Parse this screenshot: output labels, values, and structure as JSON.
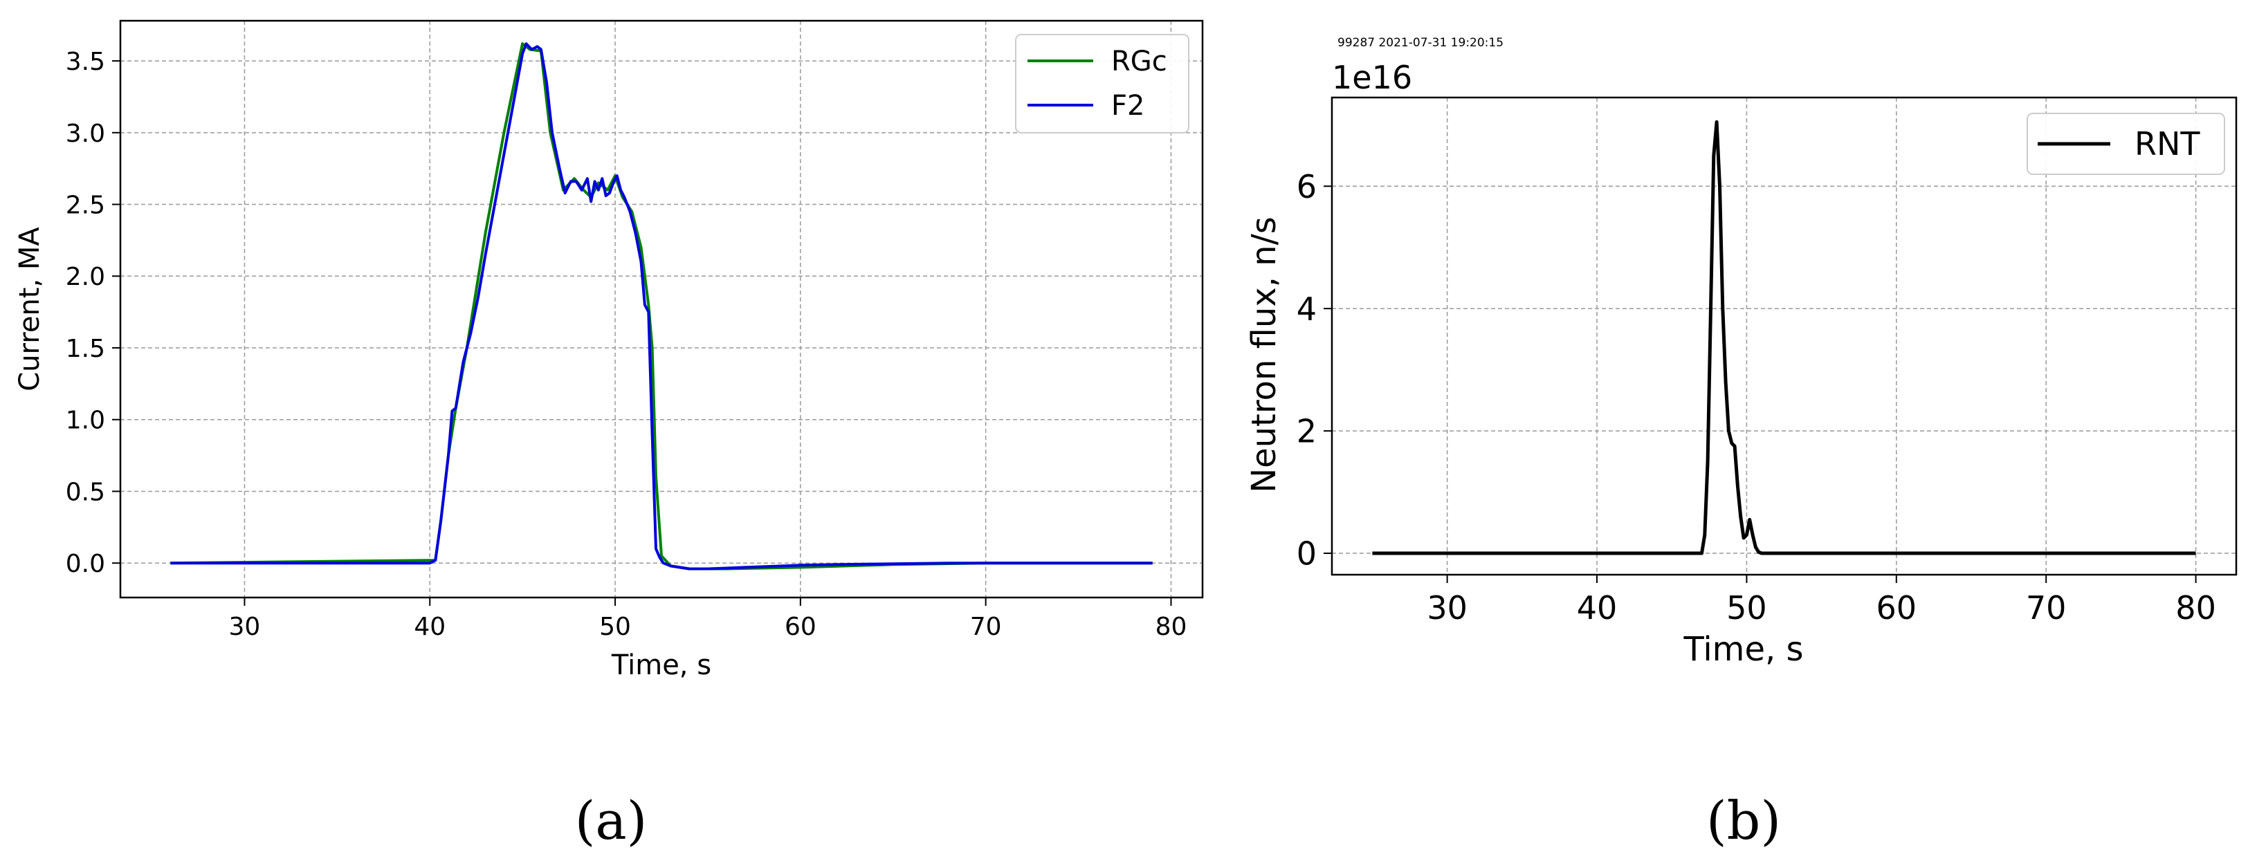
{
  "panels": [
    {
      "caption": "(a)",
      "legend": [
        "RGc",
        "F2"
      ]
    },
    {
      "caption": "(b)",
      "header_text": "99287 2021-07-31 19:20:15",
      "offset_text": "1e16",
      "legend": [
        "RNT"
      ]
    }
  ],
  "chart_data": [
    {
      "type": "line",
      "title": "",
      "xlabel": "Time, s",
      "ylabel": "Current, MA",
      "xlim": [
        23.3,
        81.7
      ],
      "ylim": [
        -0.24,
        3.78
      ],
      "xticks": [
        30,
        40,
        50,
        60,
        70,
        80
      ],
      "yticks": [
        0.0,
        0.5,
        1.0,
        1.5,
        2.0,
        2.5,
        3.0,
        3.5
      ],
      "ytick_labels": [
        "0.0",
        "0.5",
        "1.0",
        "1.5",
        "2.0",
        "2.5",
        "3.0",
        "3.5"
      ],
      "grid": true,
      "legend_position": "top-right",
      "series": [
        {
          "name": "RGc",
          "color": "#008000",
          "x": [
            26,
            40.3,
            40.6,
            41.0,
            41.4,
            42.0,
            43.0,
            44.0,
            45.0,
            45.4,
            46.0,
            46.5,
            47.2,
            47.8,
            48.3,
            48.7,
            49.1,
            49.6,
            50.0,
            50.4,
            50.9,
            51.4,
            51.8,
            52.0,
            52.2,
            52.5,
            53.0,
            54.0,
            56.0,
            60.0,
            65.0,
            70.0,
            75.0,
            79.0
          ],
          "y": [
            0.0,
            0.02,
            0.3,
            0.75,
            1.08,
            1.5,
            2.3,
            3.0,
            3.62,
            3.58,
            3.57,
            3.0,
            2.6,
            2.68,
            2.6,
            2.55,
            2.65,
            2.6,
            2.7,
            2.55,
            2.45,
            2.2,
            1.8,
            1.5,
            0.6,
            0.05,
            -0.02,
            -0.04,
            -0.04,
            -0.03,
            -0.01,
            0.0,
            0.0,
            0.0
          ]
        },
        {
          "name": "F2",
          "color": "#0000dd",
          "x": [
            26,
            30,
            35,
            40,
            40.3,
            40.6,
            41.0,
            41.2,
            41.4,
            41.8,
            42.2,
            42.6,
            43.0,
            43.5,
            44.0,
            44.5,
            45.0,
            45.2,
            45.5,
            45.8,
            46.0,
            46.3,
            46.6,
            47.0,
            47.3,
            47.6,
            47.9,
            48.2,
            48.5,
            48.7,
            48.9,
            49.1,
            49.3,
            49.5,
            49.7,
            49.9,
            50.1,
            50.3,
            50.5,
            50.8,
            51.1,
            51.4,
            51.6,
            51.8,
            52.0,
            52.2,
            52.4,
            52.6,
            53.0,
            54.0,
            55.0,
            56.0,
            57.0,
            58.0,
            59.0,
            60.0,
            62.0,
            65.0,
            68.0,
            70.0,
            72.0,
            75.0,
            79.0
          ],
          "y": [
            0.0,
            0.0,
            0.0,
            0.0,
            0.02,
            0.3,
            0.75,
            1.06,
            1.08,
            1.4,
            1.6,
            1.85,
            2.15,
            2.5,
            2.85,
            3.2,
            3.55,
            3.62,
            3.58,
            3.6,
            3.58,
            3.35,
            3.0,
            2.75,
            2.58,
            2.66,
            2.66,
            2.6,
            2.68,
            2.52,
            2.66,
            2.6,
            2.68,
            2.56,
            2.58,
            2.65,
            2.7,
            2.6,
            2.55,
            2.45,
            2.3,
            2.1,
            1.8,
            1.75,
            0.9,
            0.1,
            0.04,
            0.0,
            -0.02,
            -0.04,
            -0.04,
            -0.035,
            -0.03,
            -0.025,
            -0.02,
            -0.015,
            -0.01,
            -0.005,
            0.0,
            0.0,
            0.0,
            0.0,
            0.0
          ]
        }
      ]
    },
    {
      "type": "line",
      "title": "",
      "xlabel": "Time, s",
      "ylabel": "Neutron flux, n/s",
      "xlim": [
        22.3,
        82.7
      ],
      "ylim": [
        -0.35,
        7.45
      ],
      "xticks": [
        30,
        40,
        50,
        60,
        70,
        80
      ],
      "yticks": [
        0,
        2,
        4,
        6
      ],
      "ytick_labels": [
        "0",
        "2",
        "4",
        "6"
      ],
      "grid": true,
      "legend_position": "top-right",
      "series": [
        {
          "name": "RNT",
          "color": "#000000",
          "x": [
            25,
            30,
            40,
            47.0,
            47.2,
            47.4,
            47.6,
            47.8,
            48.0,
            48.2,
            48.4,
            48.6,
            48.8,
            49.0,
            49.2,
            49.4,
            49.6,
            49.8,
            50.0,
            50.2,
            50.4,
            50.6,
            50.8,
            51.0,
            55,
            60,
            70,
            80
          ],
          "y": [
            0,
            0,
            0,
            0,
            0.3,
            1.5,
            4.0,
            6.5,
            7.05,
            6.0,
            4.0,
            2.8,
            2.0,
            1.8,
            1.75,
            1.1,
            0.6,
            0.25,
            0.3,
            0.55,
            0.3,
            0.1,
            0.02,
            0,
            0,
            0,
            0,
            0
          ]
        }
      ]
    }
  ]
}
